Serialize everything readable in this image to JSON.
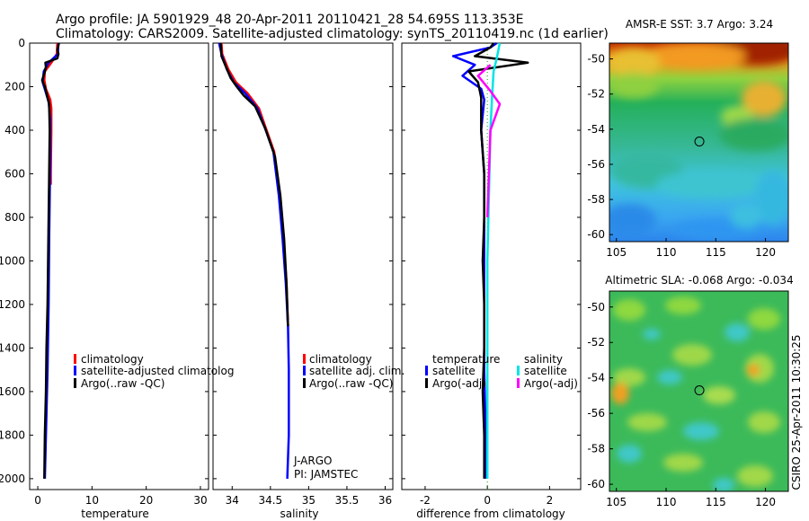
{
  "title": {
    "line1": "Argo profile: JA 5901929_48 20-Apr-2011 20110421_28 54.695S 113.353E",
    "line2": "Climatology: CARS2009. Satellite-adjusted climatology: synTS_20110419.nc (1d earlier)"
  },
  "side_label": "CSIRO 25-Apr-2011 10:30:25",
  "colors": {
    "clim": "#ff0000",
    "sat": "#0000ff",
    "argo": "#000000",
    "sat_sal": "#00e5e5",
    "argo_sal": "#ff00ff",
    "zero_line": "#00aa00"
  },
  "chart_data": [
    {
      "id": "temperature",
      "type": "line",
      "xlabel": "temperature",
      "ylabel": "",
      "xlim": [
        -1.5,
        31.5
      ],
      "ylim": [
        2050,
        0
      ],
      "xticks": [
        0,
        10,
        20,
        30
      ],
      "yticks": [
        0,
        200,
        400,
        600,
        800,
        1000,
        1200,
        1400,
        1600,
        1800,
        2000
      ],
      "legend": [
        "climatology",
        "satellite-adjusted climatolog",
        "Argo(..raw -QC)"
      ],
      "series": [
        {
          "name": "climatology",
          "color_key": "clim",
          "points": [
            [
              3.6,
              0
            ],
            [
              3.5,
              50
            ],
            [
              2.5,
              90
            ],
            [
              1.3,
              130
            ],
            [
              1.2,
              170
            ],
            [
              1.5,
              210
            ],
            [
              2.3,
              260
            ],
            [
              2.5,
              300
            ],
            [
              2.5,
              400
            ],
            [
              2.4,
              600
            ],
            [
              2.4,
              650
            ]
          ]
        },
        {
          "name": "satellite-adjusted climatology",
          "color_key": "sat",
          "points": [
            [
              3.8,
              0
            ],
            [
              3.7,
              50
            ],
            [
              2.0,
              90
            ],
            [
              1.1,
              130
            ],
            [
              0.9,
              180
            ],
            [
              1.4,
              220
            ],
            [
              2.0,
              270
            ],
            [
              2.3,
              350
            ],
            [
              2.3,
              500
            ],
            [
              2.2,
              700
            ],
            [
              2.1,
              900
            ],
            [
              2.0,
              1200
            ],
            [
              1.8,
              1500
            ],
            [
              1.5,
              1800
            ],
            [
              1.3,
              2000
            ]
          ]
        },
        {
          "name": "Argo(..raw -QC)",
          "color_key": "argo",
          "points": [
            [
              3.9,
              0
            ],
            [
              3.6,
              30
            ],
            [
              3.8,
              50
            ],
            [
              3.6,
              70
            ],
            [
              1.4,
              90
            ],
            [
              1.5,
              110
            ],
            [
              1.2,
              140
            ],
            [
              0.8,
              170
            ],
            [
              1.3,
              200
            ],
            [
              1.6,
              230
            ],
            [
              2.1,
              280
            ],
            [
              2.2,
              400
            ],
            [
              2.1,
              600
            ],
            [
              2.0,
              800
            ],
            [
              1.9,
              1000
            ],
            [
              1.8,
              1200
            ],
            [
              1.6,
              1400
            ],
            [
              1.5,
              1600
            ],
            [
              1.3,
              1800
            ],
            [
              1.2,
              2000
            ]
          ]
        }
      ]
    },
    {
      "id": "salinity",
      "type": "line",
      "xlabel": "salinity",
      "ylabel": "",
      "xlim": [
        33.75,
        36.1
      ],
      "ylim": [
        2050,
        0
      ],
      "xticks": [
        34,
        34.5,
        35,
        35.5,
        36
      ],
      "yticks": [
        0,
        200,
        400,
        600,
        800,
        1000,
        1200,
        1400,
        1600,
        1800,
        2000
      ],
      "legend": [
        "climatology",
        "satellite adj. clim.",
        "Argo(..raw -QC)"
      ],
      "annotation": [
        "J-ARGO",
        "PI: JAMSTEC"
      ],
      "series": [
        {
          "name": "climatology",
          "color_key": "clim",
          "points": [
            [
              33.86,
              0
            ],
            [
              33.87,
              50
            ],
            [
              33.95,
              120
            ],
            [
              34.05,
              180
            ],
            [
              34.2,
              230
            ],
            [
              34.35,
              300
            ],
            [
              34.45,
              400
            ],
            [
              34.55,
              500
            ],
            [
              34.62,
              700
            ],
            [
              34.67,
              900
            ],
            [
              34.71,
              1100
            ],
            [
              34.73,
              1300
            ]
          ]
        },
        {
          "name": "satellite adj. clim.",
          "color_key": "sat",
          "points": [
            [
              33.83,
              0
            ],
            [
              33.86,
              50
            ],
            [
              33.93,
              120
            ],
            [
              34.02,
              180
            ],
            [
              34.17,
              230
            ],
            [
              34.33,
              300
            ],
            [
              34.44,
              400
            ],
            [
              34.54,
              500
            ],
            [
              34.61,
              700
            ],
            [
              34.66,
              900
            ],
            [
              34.7,
              1100
            ],
            [
              34.73,
              1300
            ],
            [
              34.74,
              1500
            ],
            [
              34.74,
              1800
            ],
            [
              34.72,
              2000
            ]
          ]
        },
        {
          "name": "Argo(..raw -QC)",
          "color_key": "argo",
          "points": [
            [
              33.85,
              0
            ],
            [
              33.86,
              60
            ],
            [
              33.92,
              110
            ],
            [
              33.98,
              160
            ],
            [
              34.06,
              200
            ],
            [
              34.15,
              240
            ],
            [
              34.3,
              290
            ],
            [
              34.43,
              390
            ],
            [
              34.56,
              520
            ],
            [
              34.63,
              700
            ],
            [
              34.68,
              900
            ],
            [
              34.71,
              1100
            ],
            [
              34.73,
              1300
            ]
          ]
        }
      ]
    },
    {
      "id": "difference",
      "type": "line",
      "xlabel": "difference from climatology",
      "ylabel": "",
      "xlim": [
        -2.75,
        3.0
      ],
      "ylim": [
        2050,
        0
      ],
      "xticks": [
        -2,
        0,
        2
      ],
      "yticks": [
        0,
        200,
        400,
        600,
        800,
        1000,
        1200,
        1400,
        1600,
        1800,
        2000
      ],
      "legend_headers": [
        "temperature",
        "salinity"
      ],
      "legend": [
        "satellite",
        "Argo(-adj)",
        "satellite",
        "Argo(-adj)"
      ],
      "series": [
        {
          "name": "temperature satellite",
          "color_key": "sat",
          "points": [
            [
              0.3,
              0
            ],
            [
              0.1,
              20
            ],
            [
              -1.1,
              60
            ],
            [
              -0.4,
              100
            ],
            [
              -0.8,
              150
            ],
            [
              -0.2,
              210
            ],
            [
              -0.1,
              260
            ],
            [
              -0.2,
              400
            ],
            [
              -0.1,
              600
            ],
            [
              -0.1,
              800
            ],
            [
              -0.1,
              1000
            ],
            [
              -0.1,
              1200
            ],
            [
              -0.1,
              1500
            ],
            [
              -0.05,
              1800
            ],
            [
              -0.05,
              2000
            ]
          ]
        },
        {
          "name": "temperature Argo(-adj)",
          "color_key": "argo",
          "points": [
            [
              0.2,
              0
            ],
            [
              0.1,
              20
            ],
            [
              -0.4,
              60
            ],
            [
              1.3,
              90
            ],
            [
              -0.6,
              130
            ],
            [
              -0.3,
              180
            ],
            [
              -0.2,
              250
            ],
            [
              -0.2,
              400
            ],
            [
              -0.1,
              600
            ],
            [
              -0.1,
              800
            ],
            [
              -0.15,
              1000
            ],
            [
              -0.1,
              1200
            ],
            [
              -0.1,
              1400
            ],
            [
              -0.15,
              1600
            ],
            [
              -0.1,
              1800
            ],
            [
              -0.1,
              2000
            ]
          ]
        },
        {
          "name": "salinity satellite",
          "color_key": "sat_sal",
          "points": [
            [
              0.4,
              0
            ],
            [
              0.3,
              70
            ],
            [
              0.2,
              130
            ],
            [
              0.15,
              250
            ],
            [
              0.1,
              400
            ],
            [
              0.05,
              700
            ],
            [
              0.0,
              1000
            ],
            [
              0.0,
              1400
            ],
            [
              0.0,
              1800
            ],
            [
              0.0,
              2000
            ]
          ]
        },
        {
          "name": "salinity Argo(-adj)",
          "color_key": "argo_sal",
          "points": [
            [
              0.1,
              100
            ],
            [
              -0.3,
              150
            ],
            [
              0.1,
              220
            ],
            [
              0.4,
              280
            ],
            [
              0.1,
              400
            ],
            [
              0.05,
              600
            ],
            [
              0.0,
              800
            ]
          ]
        }
      ]
    },
    {
      "id": "sst_map",
      "type": "heatmap",
      "title": "AMSR-E SST: 3.7 Argo: 3.24",
      "xlim": [
        104.3,
        122.3
      ],
      "ylim": [
        -60.4,
        -49.1
      ],
      "xticks": [
        105,
        110,
        115,
        120
      ],
      "yticks": [
        -50,
        -52,
        -54,
        -56,
        -58,
        -60
      ],
      "marker": {
        "lon": 113.35,
        "lat": -54.7
      }
    },
    {
      "id": "sla_map",
      "type": "heatmap",
      "title": "Altimetric SLA: -0.068 Argo: -0.034",
      "xlim": [
        104.3,
        122.3
      ],
      "ylim": [
        -60.4,
        -49.1
      ],
      "xticks": [
        105,
        110,
        115,
        120
      ],
      "yticks": [
        -50,
        -52,
        -54,
        -56,
        -58,
        -60
      ],
      "marker": {
        "lon": 113.35,
        "lat": -54.7
      }
    }
  ]
}
